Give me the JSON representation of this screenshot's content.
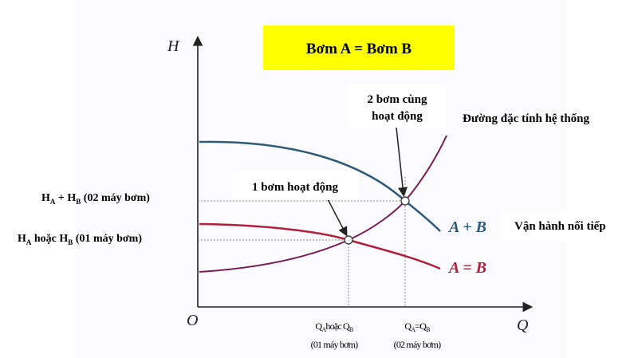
{
  "title_box": {
    "text": "Bơm A = Bơm B",
    "color": "#ffff00"
  },
  "axes": {
    "y_label": "H",
    "x_label": "Q",
    "origin_label": "O"
  },
  "curves": {
    "a_plus_b": {
      "label": "A + B",
      "color": "#2e5a78"
    },
    "a_eq_b": {
      "label": "A = B",
      "color": "#b01e3c"
    },
    "system": {
      "label": "Đường đặc tính hệ thống",
      "color": "#7a1a55"
    }
  },
  "y_markers": {
    "sum": {
      "main": "H",
      "sub1": "A",
      "mid": " + H",
      "sub2": "B",
      "tail": " (02 máy bơm)"
    },
    "single": {
      "main": "H",
      "sub1": "A",
      "mid": " hoặc H",
      "sub2": "B",
      "tail": " (01 máy bơm)"
    }
  },
  "x_markers": {
    "single": {
      "l1a": "Q",
      "l1s1": "A",
      "l1b": "hoặc Q",
      "l1s2": "B",
      "line2": "(01 máy bơm)"
    },
    "double": {
      "l1a": "Q",
      "l1s1": "A",
      "l1b": "=Q",
      "l1s2": "B",
      "line2": "(02 máy bơm)"
    }
  },
  "callouts": {
    "one_pump": "1 bơm hoạt động",
    "two_pumps_line1": "2 bơm cùng",
    "two_pumps_line2": "hoạt động",
    "series": "Vận hành nối tiếp"
  }
}
